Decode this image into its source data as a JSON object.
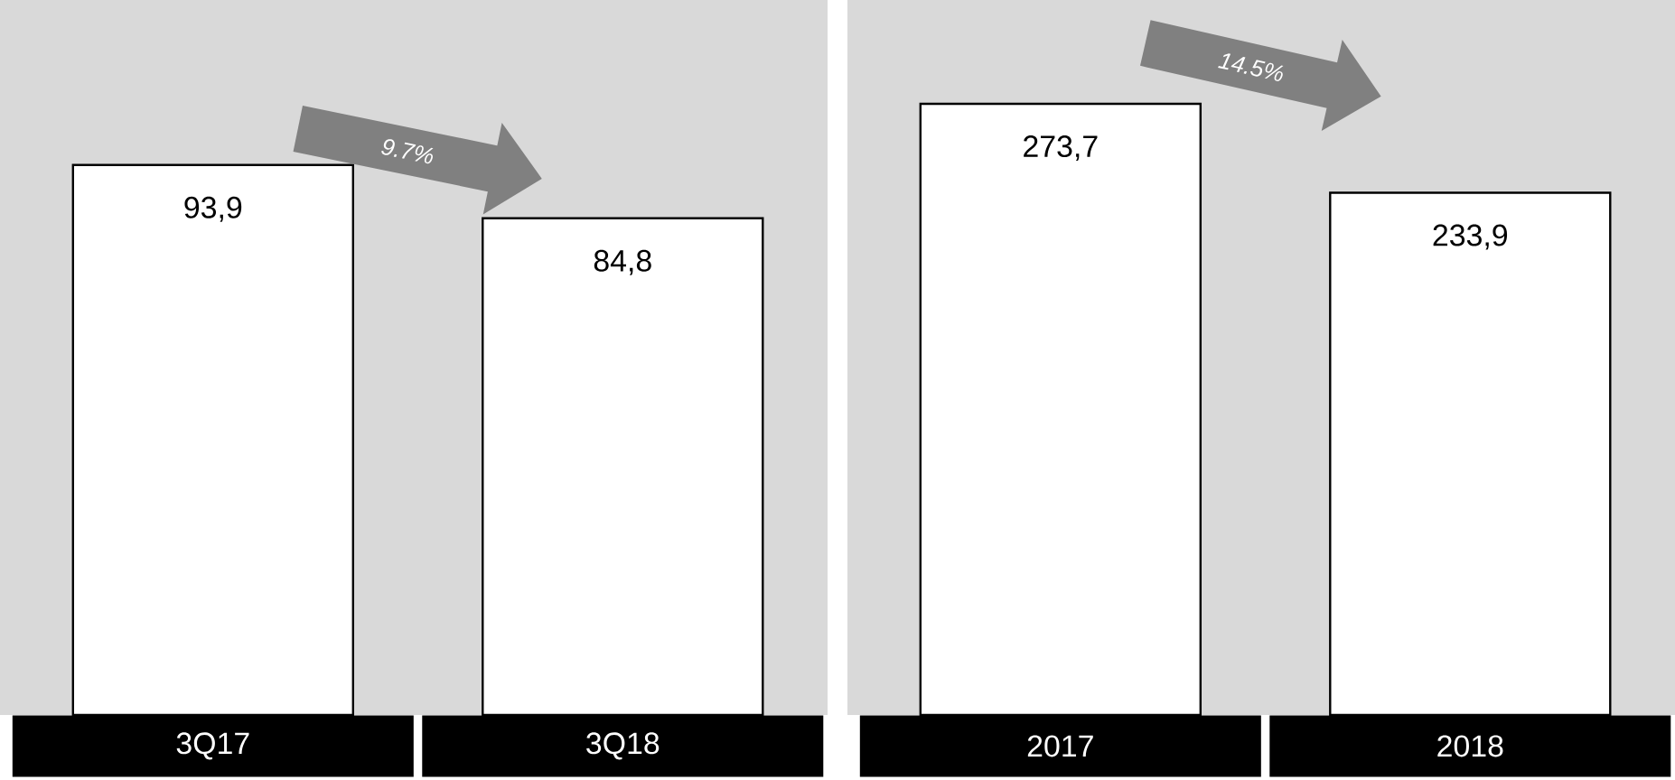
{
  "chart_data": [
    {
      "type": "bar",
      "categories": [
        "3Q17",
        "3Q18"
      ],
      "values": [
        93.9,
        84.8
      ],
      "value_labels": [
        "93,9",
        "84,8"
      ],
      "color": "#ffffff",
      "annotations": [
        "9.7%"
      ]
    },
    {
      "type": "bar",
      "categories": [
        "2017",
        "2018"
      ],
      "values": [
        273.7,
        233.9
      ],
      "value_labels": [
        "273,7",
        "233,9"
      ],
      "color": "#ffffff",
      "annotations": [
        "14.5%"
      ]
    }
  ]
}
